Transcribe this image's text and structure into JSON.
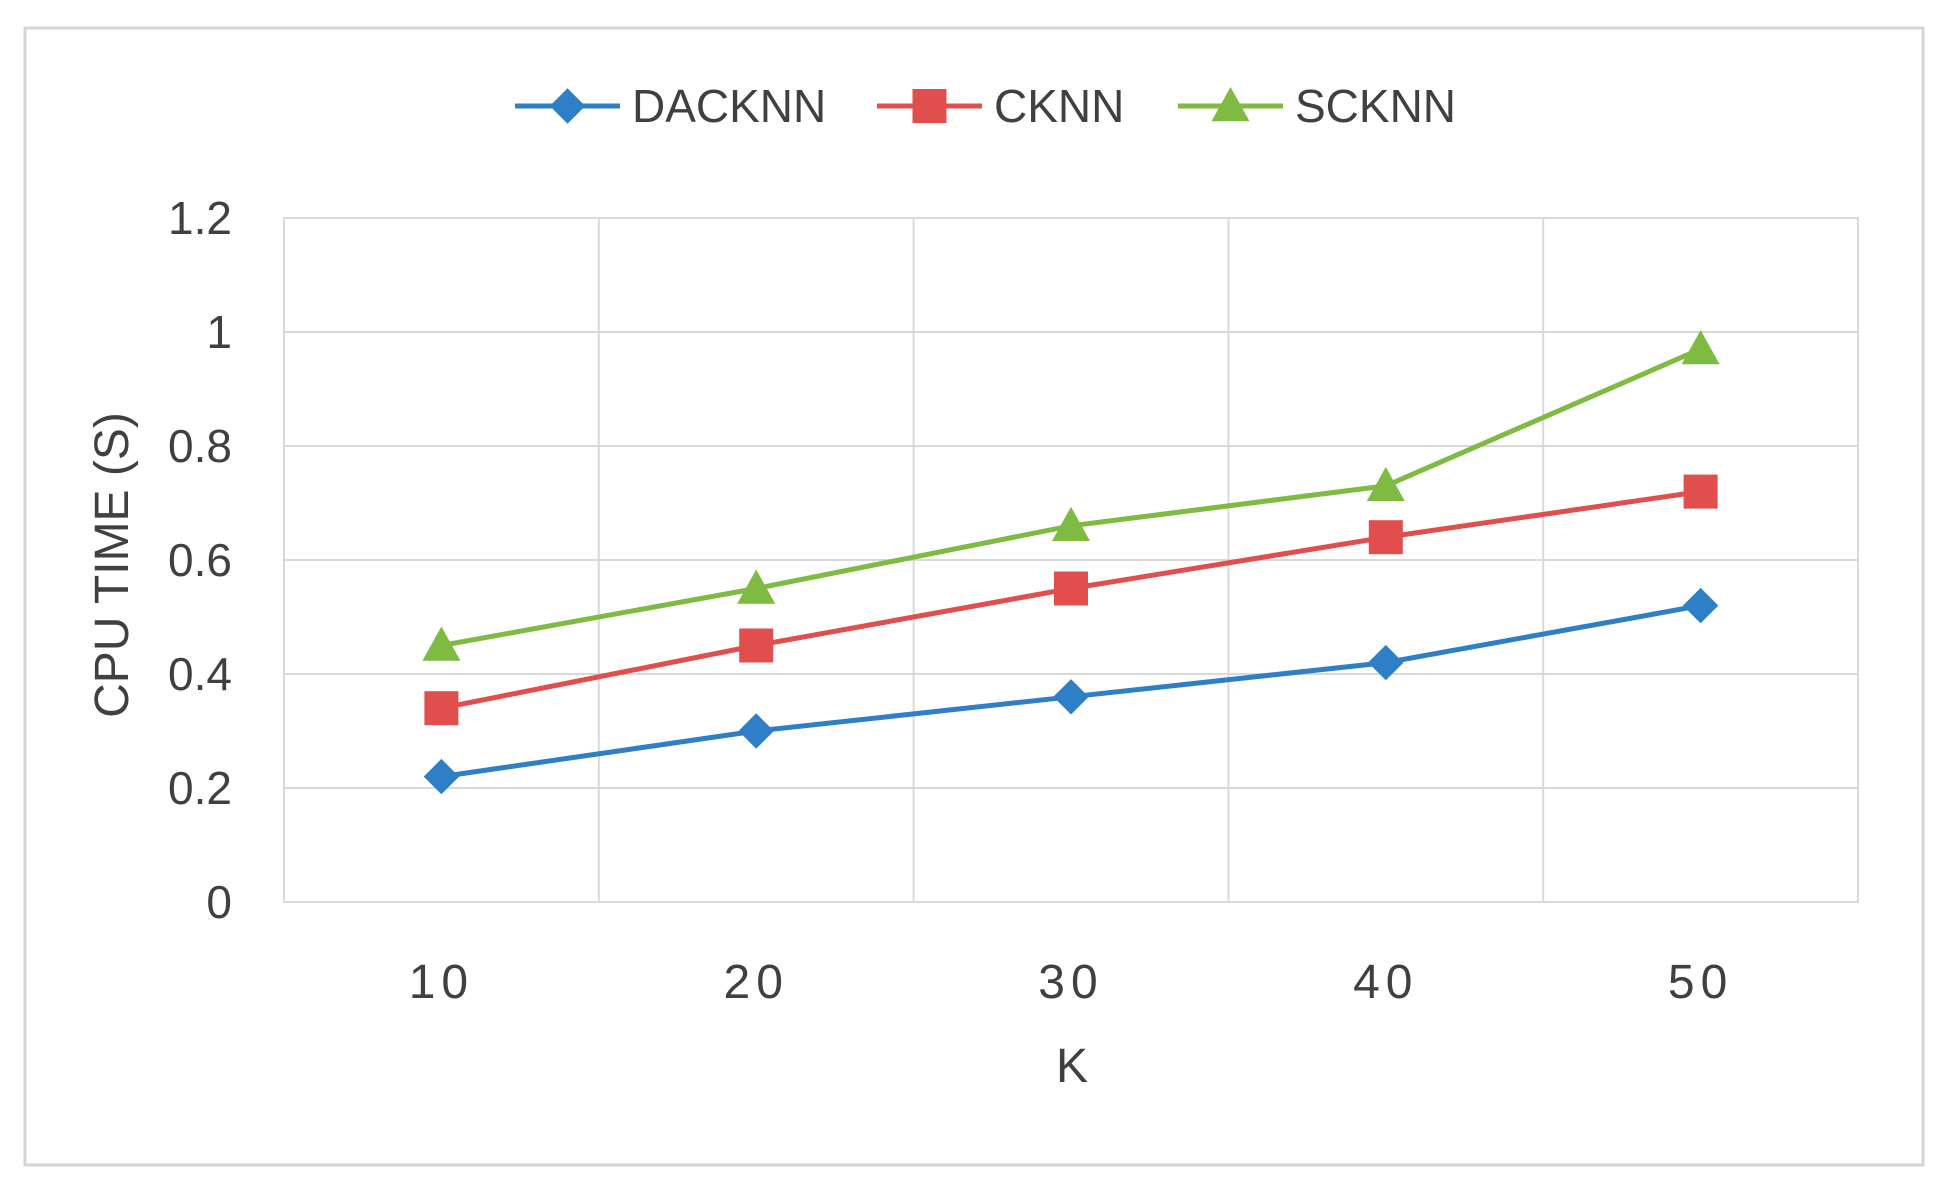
{
  "chart_data": {
    "type": "line",
    "title": "",
    "xlabel": "K",
    "ylabel": "CPU TIME (S)",
    "categories": [
      "10",
      "20",
      "30",
      "40",
      "50"
    ],
    "y_ticks": [
      "0",
      "0.2",
      "0.4",
      "0.6",
      "0.8",
      "1",
      "1.2"
    ],
    "ylim": [
      0,
      1.2
    ],
    "grid": true,
    "legend_position": "top-center",
    "series": [
      {
        "name": "DACKNN",
        "values": [
          0.22,
          0.3,
          0.36,
          0.42,
          0.52
        ],
        "color": "#2f7fc7",
        "marker": "diamond"
      },
      {
        "name": "CKNN",
        "values": [
          0.34,
          0.45,
          0.55,
          0.64,
          0.72
        ],
        "color": "#e04e4e",
        "marker": "square"
      },
      {
        "name": "SCKNN",
        "values": [
          0.45,
          0.55,
          0.66,
          0.73,
          0.97
        ],
        "color": "#7fba42",
        "marker": "triangle"
      }
    ]
  }
}
